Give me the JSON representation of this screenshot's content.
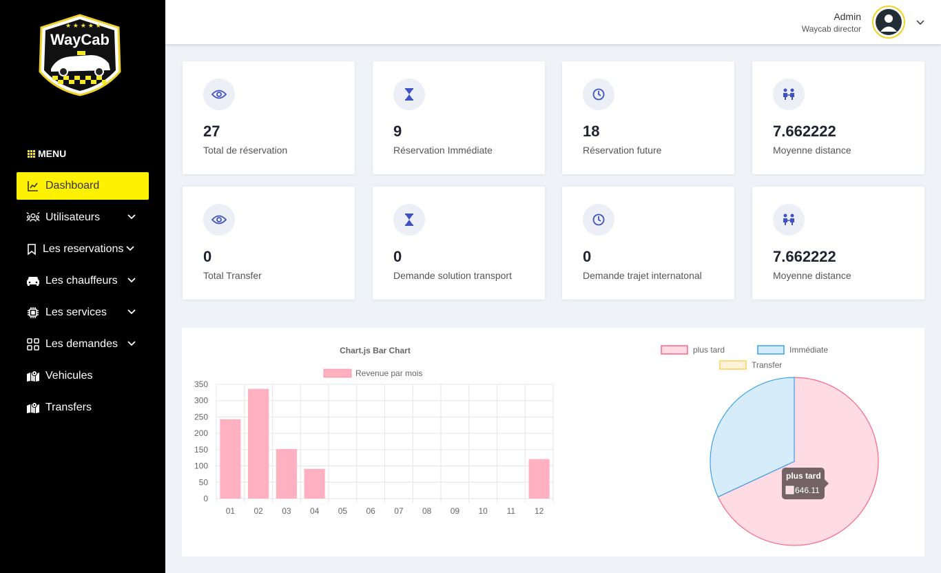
{
  "brand": {
    "logo_text": "WayCab"
  },
  "menu": {
    "title": "MENU",
    "items": [
      {
        "label": "Dashboard",
        "icon": "chart-line-icon",
        "active": true,
        "has_submenu": false
      },
      {
        "label": "Utilisateurs",
        "icon": "users-icon",
        "active": false,
        "has_submenu": true
      },
      {
        "label": "Les reservations",
        "icon": "bookmark-icon",
        "active": false,
        "has_submenu": true
      },
      {
        "label": "Les chauffeurs",
        "icon": "car-icon",
        "active": false,
        "has_submenu": true
      },
      {
        "label": "Les services",
        "icon": "cpu-icon",
        "active": false,
        "has_submenu": true
      },
      {
        "label": "Les demandes",
        "icon": "grid-icon",
        "active": false,
        "has_submenu": true
      },
      {
        "label": "Vehicules",
        "icon": "map-icon",
        "active": false,
        "has_submenu": false
      },
      {
        "label": "Transfers",
        "icon": "map-icon",
        "active": false,
        "has_submenu": false
      }
    ]
  },
  "header": {
    "user_name": "Admin",
    "user_role": "Waycab director"
  },
  "stats": [
    {
      "value": "27",
      "label": "Total de réservation",
      "icon": "eye-icon"
    },
    {
      "value": "9",
      "label": "Réservation Immédiate",
      "icon": "hourglass-icon"
    },
    {
      "value": "18",
      "label": "Réservation future",
      "icon": "clock-icon"
    },
    {
      "value": "7.662222",
      "label": "Moyenne distance",
      "icon": "people-icon"
    },
    {
      "value": "0",
      "label": "Total Transfer",
      "icon": "eye-icon"
    },
    {
      "value": "0",
      "label": "Demande solution transport",
      "icon": "hourglass-icon"
    },
    {
      "value": "0",
      "label": "Demande trajet internatonal",
      "icon": "clock-icon"
    },
    {
      "value": "7.662222",
      "label": "Moyenne distance",
      "icon": "people-icon"
    }
  ],
  "colors": {
    "sidebar_bg": "#000000",
    "active_item": "#fff200",
    "icon_accent": "#3f51c7",
    "bar_fill": "#ffb1c1",
    "pie_red_fill": "#ffdbe3",
    "pie_red_border": "#ff6384",
    "pie_blue_fill": "#d7ecfb",
    "pie_blue_border": "#36a2eb",
    "pie_yellow_fill": "#fff4d9",
    "pie_yellow_border": "#ffcd56"
  },
  "chart_data": [
    {
      "type": "bar",
      "title": "Chart.js Bar Chart",
      "categories": [
        "01",
        "02",
        "03",
        "04",
        "05",
        "06",
        "07",
        "08",
        "09",
        "10",
        "11",
        "12"
      ],
      "series": [
        {
          "name": "Revenue par mois",
          "values": [
            243,
            336,
            152,
            91,
            0,
            0,
            0,
            0,
            0,
            0,
            0,
            121
          ]
        }
      ],
      "ylim": [
        0,
        350
      ],
      "yticks": [
        0,
        50,
        100,
        150,
        200,
        250,
        300,
        350
      ],
      "legend": "top",
      "grid": true
    },
    {
      "type": "pie",
      "labels": [
        "plus tard",
        "Immédiate",
        "Transfer"
      ],
      "values": [
        646.11,
        303,
        0
      ],
      "legend": "top",
      "tooltip": {
        "title": "plus tard",
        "value": "646.11"
      }
    }
  ]
}
